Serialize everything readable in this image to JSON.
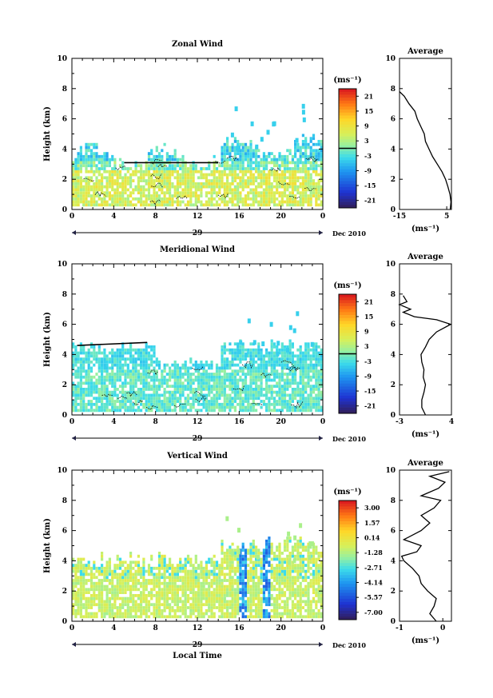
{
  "chart_data": [
    {
      "type": "heatmap",
      "title": "Zonal Wind",
      "ylabel": "Height (km)",
      "xlabel": "",
      "xticks": [
        "0",
        "4",
        "8",
        "12",
        "16",
        "20",
        "0"
      ],
      "yticks": [
        "0",
        "2",
        "4",
        "6",
        "8",
        "10"
      ],
      "date_day": "29",
      "date_label": "Dec 2010",
      "xlim": [
        0,
        24
      ],
      "ylim": [
        0,
        10
      ],
      "colorbar": {
        "unit": "(ms⁻¹)",
        "ticks": [
          "21",
          "15",
          "9",
          "3",
          "-3",
          "-9",
          "-15",
          "-21"
        ],
        "range": [
          -24,
          24
        ]
      },
      "average": {
        "title": "Average",
        "xlabel": "(ms⁻¹)",
        "xticks": [
          "-15",
          "5"
        ],
        "xlim": [
          -15,
          7
        ],
        "yticks": [
          "0",
          "2",
          "4",
          "6",
          "8",
          "10"
        ],
        "profile": [
          [
            6.5,
            0
          ],
          [
            6.8,
            0.5
          ],
          [
            6.4,
            1
          ],
          [
            5.5,
            1.5
          ],
          [
            4.5,
            2
          ],
          [
            3,
            2.5
          ],
          [
            1,
            3
          ],
          [
            -1,
            3.5
          ],
          [
            -2.5,
            4
          ],
          [
            -4,
            4.5
          ],
          [
            -4.5,
            5
          ],
          [
            -6,
            5.5
          ],
          [
            -7.5,
            6
          ],
          [
            -8.5,
            6.5
          ],
          [
            -11,
            7
          ],
          [
            -13,
            7.5
          ],
          [
            -15,
            7.8
          ]
        ]
      }
    },
    {
      "type": "heatmap",
      "title": "Meridional Wind",
      "ylabel": "Height (km)",
      "xlabel": "",
      "xticks": [
        "0",
        "4",
        "8",
        "12",
        "16",
        "20",
        "0"
      ],
      "yticks": [
        "0",
        "2",
        "4",
        "6",
        "8",
        "10"
      ],
      "date_day": "29",
      "date_label": "Dec 2010",
      "xlim": [
        0,
        24
      ],
      "ylim": [
        0,
        10
      ],
      "colorbar": {
        "unit": "(ms⁻¹)",
        "ticks": [
          "21",
          "15",
          "9",
          "3",
          "-3",
          "-9",
          "-15",
          "-21"
        ],
        "range": [
          -24,
          24
        ]
      },
      "average": {
        "title": "Average",
        "xlabel": "(ms⁻¹)",
        "xticks": [
          "-3",
          "4"
        ],
        "xlim": [
          -3,
          4
        ],
        "yticks": [
          "0",
          "2",
          "4",
          "6",
          "8",
          "10"
        ],
        "profile": [
          [
            0.5,
            0
          ],
          [
            0,
            0.5
          ],
          [
            0,
            1
          ],
          [
            0.3,
            1.5
          ],
          [
            0.5,
            2
          ],
          [
            0.2,
            2.5
          ],
          [
            0.3,
            3
          ],
          [
            0,
            3.5
          ],
          [
            -0.1,
            4
          ],
          [
            0.5,
            4.5
          ],
          [
            1,
            5
          ],
          [
            2,
            5.5
          ],
          [
            3.9,
            6
          ],
          [
            2,
            6.3
          ],
          [
            -1,
            6.5
          ],
          [
            -2.5,
            6.8
          ],
          [
            -1.5,
            7
          ],
          [
            -3,
            7.3
          ],
          [
            -2,
            7.5
          ],
          [
            -2.5,
            7.9
          ]
        ]
      }
    },
    {
      "type": "heatmap",
      "title": "Vertical Wind",
      "ylabel": "Height (km)",
      "xlabel": "Local Time",
      "xticks": [
        "0",
        "4",
        "8",
        "12",
        "16",
        "20",
        "0"
      ],
      "yticks": [
        "0",
        "2",
        "4",
        "6",
        "8",
        "10"
      ],
      "date_day": "29",
      "date_label": "Dec 2010",
      "xlim": [
        0,
        24
      ],
      "ylim": [
        0,
        10
      ],
      "colorbar": {
        "unit": "(ms⁻¹)",
        "ticks": [
          "3.00",
          "1.57",
          "0.14",
          "-1.28",
          "-2.71",
          "-4.14",
          "-5.57",
          "-7.00"
        ],
        "range": [
          -7.7,
          3.7
        ]
      },
      "average": {
        "title": "Average",
        "xlabel": "(ms⁻¹)",
        "xticks": [
          "-1",
          "0"
        ],
        "xlim": [
          -1,
          0.2
        ],
        "yticks": [
          "0",
          "2",
          "4",
          "6",
          "8",
          "10"
        ],
        "profile": [
          [
            -0.15,
            0
          ],
          [
            -0.3,
            0.5
          ],
          [
            -0.2,
            1
          ],
          [
            -0.15,
            1.5
          ],
          [
            -0.35,
            2
          ],
          [
            -0.5,
            2.5
          ],
          [
            -0.55,
            3
          ],
          [
            -0.7,
            3.5
          ],
          [
            -0.9,
            4
          ],
          [
            -0.95,
            4.3
          ],
          [
            -0.6,
            4.6
          ],
          [
            -0.5,
            5
          ],
          [
            -0.9,
            5.4
          ],
          [
            -0.5,
            6
          ],
          [
            -0.3,
            6.5
          ],
          [
            -0.5,
            7
          ],
          [
            -0.2,
            7.5
          ],
          [
            -0.05,
            8
          ],
          [
            -0.5,
            8.3
          ],
          [
            -0.1,
            8.8
          ],
          [
            0.05,
            9.2
          ],
          [
            -0.3,
            9.6
          ],
          [
            0.15,
            9.9
          ]
        ]
      }
    }
  ]
}
